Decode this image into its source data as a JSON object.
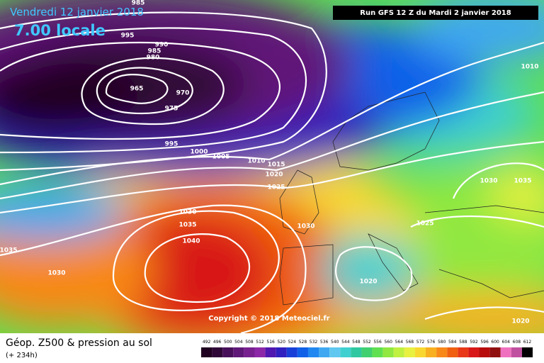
{
  "header": {
    "date": "Vendredi 12 janvier 2018",
    "time": "7.00 locale",
    "run": "Run GFS 12 Z du Mardi 2 janvier 2018"
  },
  "isobar_labels": [
    "985",
    "995",
    "990",
    "985",
    "980",
    "965",
    "970",
    "975",
    "995",
    "1000",
    "1005",
    "1010",
    "1015",
    "1020",
    "1025",
    "1030",
    "1035",
    "1040",
    "1030",
    "1035",
    "1030",
    "1025",
    "1020",
    "1030",
    "1035",
    "1010",
    "1020"
  ],
  "copyright": "Copyright © 2018 Meteociel.fr",
  "footer": {
    "title": "Géop. Z500 & pression au sol",
    "lead": "(+ 234h)"
  },
  "legend": {
    "levels": [
      492,
      496,
      500,
      504,
      508,
      512,
      516,
      520,
      524,
      528,
      532,
      536,
      540,
      544,
      548,
      552,
      556,
      560,
      564,
      568,
      572,
      576,
      580,
      584,
      588,
      592,
      596,
      600,
      604,
      608,
      612
    ],
    "colors": [
      "#200020",
      "#300838",
      "#48105a",
      "#601878",
      "#782090",
      "#8c28a8",
      "#5018b0",
      "#3020c0",
      "#1840d8",
      "#1060e8",
      "#2088f0",
      "#40a8f0",
      "#60c8f0",
      "#40d0d0",
      "#30c8a0",
      "#40d070",
      "#60e050",
      "#90e840",
      "#c0f040",
      "#e8f040",
      "#f8d830",
      "#f8b020",
      "#f88818",
      "#f06010",
      "#e83818",
      "#d81818",
      "#b80c0c",
      "#901010",
      "#f070c0",
      "#c050a0",
      "#000000"
    ]
  }
}
